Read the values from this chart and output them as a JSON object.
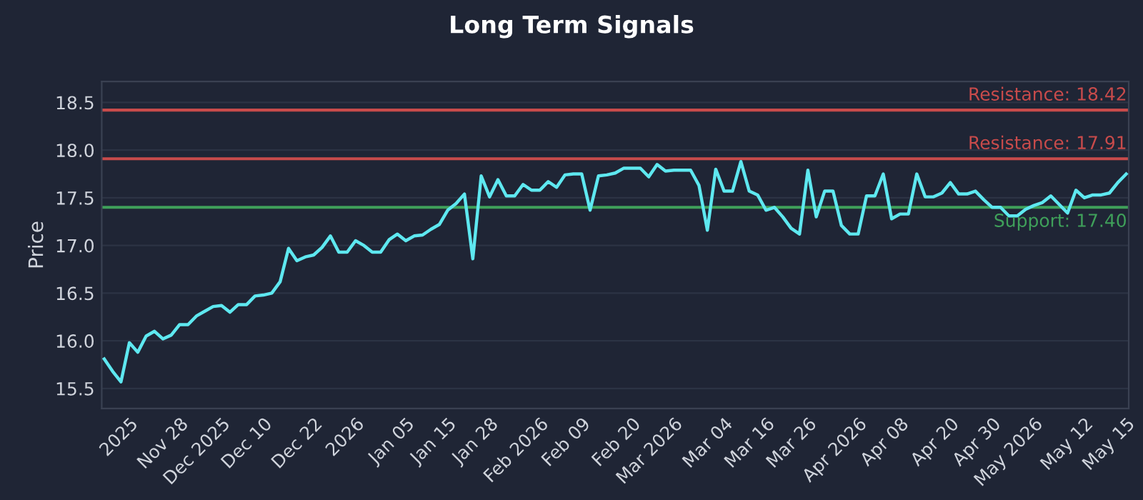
{
  "chart_data": {
    "type": "line",
    "title": "Long Term Signals",
    "ylabel": "Price",
    "categories": [
      null,
      null,
      null,
      "2025",
      null,
      null,
      null,
      null,
      null,
      "Nov 28",
      null,
      null,
      null,
      null,
      "Dec 2025",
      null,
      null,
      null,
      null,
      "Dec 10",
      null,
      null,
      null,
      null,
      null,
      "Dec 22",
      null,
      null,
      null,
      null,
      "2026",
      null,
      null,
      null,
      null,
      null,
      "Jan 05",
      null,
      null,
      null,
      null,
      "Jan 15",
      null,
      null,
      null,
      null,
      "Jan 28",
      null,
      null,
      null,
      null,
      null,
      "Feb 2026",
      null,
      null,
      null,
      null,
      "Feb 09",
      null,
      null,
      null,
      null,
      null,
      "Feb 20",
      null,
      null,
      null,
      null,
      "Mar 2026",
      null,
      null,
      null,
      null,
      null,
      "Mar 04",
      null,
      null,
      null,
      null,
      "Mar 16",
      null,
      null,
      null,
      null,
      "Mar 26",
      null,
      null,
      null,
      null,
      null,
      "Apr 2026",
      null,
      null,
      null,
      null,
      "Apr 08",
      null,
      null,
      null,
      null,
      null,
      "Apr 20",
      null,
      null,
      null,
      null,
      "Apr 30",
      null,
      null,
      null,
      null,
      "May 2026",
      null,
      null,
      null,
      null,
      null,
      "May 12",
      null,
      null,
      null,
      null,
      "May 15"
    ],
    "series": [
      {
        "color": "#5ee8f0",
        "values": [
          15.81,
          15.68,
          15.57,
          15.98,
          15.88,
          16.05,
          16.1,
          16.02,
          16.06,
          16.17,
          16.17,
          16.26,
          16.31,
          16.36,
          16.37,
          16.3,
          16.38,
          16.38,
          16.47,
          16.48,
          16.5,
          16.62,
          16.97,
          16.84,
          16.88,
          16.9,
          16.98,
          17.1,
          16.93,
          16.93,
          17.05,
          17.0,
          16.93,
          16.93,
          17.06,
          17.12,
          17.05,
          17.1,
          17.11,
          17.17,
          17.22,
          17.37,
          17.44,
          17.54,
          16.86,
          17.73,
          17.51,
          17.69,
          17.52,
          17.52,
          17.64,
          17.58,
          17.58,
          17.67,
          17.61,
          17.74,
          17.75,
          17.75,
          17.37,
          17.73,
          17.74,
          17.76,
          17.81,
          17.81,
          17.81,
          17.72,
          17.85,
          17.78,
          17.79,
          17.79,
          17.79,
          17.63,
          17.16,
          17.8,
          17.57,
          17.57,
          17.88,
          17.57,
          17.53,
          17.37,
          17.4,
          17.3,
          17.18,
          17.12,
          17.79,
          17.3,
          17.57,
          17.57,
          17.21,
          17.12,
          17.12,
          17.52,
          17.52,
          17.75,
          17.28,
          17.33,
          17.33,
          17.75,
          17.51,
          17.51,
          17.55,
          17.66,
          17.54,
          17.54,
          17.57,
          17.48,
          17.4,
          17.4,
          17.31,
          17.31,
          17.38,
          17.42,
          17.45,
          17.52,
          17.43,
          17.34,
          17.58,
          17.5,
          17.53,
          17.53,
          17.55,
          17.66,
          17.75
        ]
      }
    ],
    "ylim": [
      15.29,
      18.72
    ],
    "yticks": [
      15.5,
      {
        "value": 16,
        "label": "16.0"
      },
      16.5,
      {
        "value": 17,
        "label": "17.0"
      },
      17.5,
      {
        "value": 18,
        "label": "18.0"
      },
      18.5
    ],
    "ref_lines": [
      {
        "axis": "y",
        "value": 18.42,
        "label": "Resistance: 18.42",
        "color": "#c84b4b"
      },
      {
        "axis": "y",
        "value": 17.91,
        "label": "Resistance: 17.91",
        "color": "#c84b4b"
      },
      {
        "axis": "y",
        "value": 17.4,
        "label": "Support: 17.40",
        "color": "#3fa05a"
      }
    ],
    "grid": "y",
    "marker": "none",
    "line_style": "solid"
  }
}
